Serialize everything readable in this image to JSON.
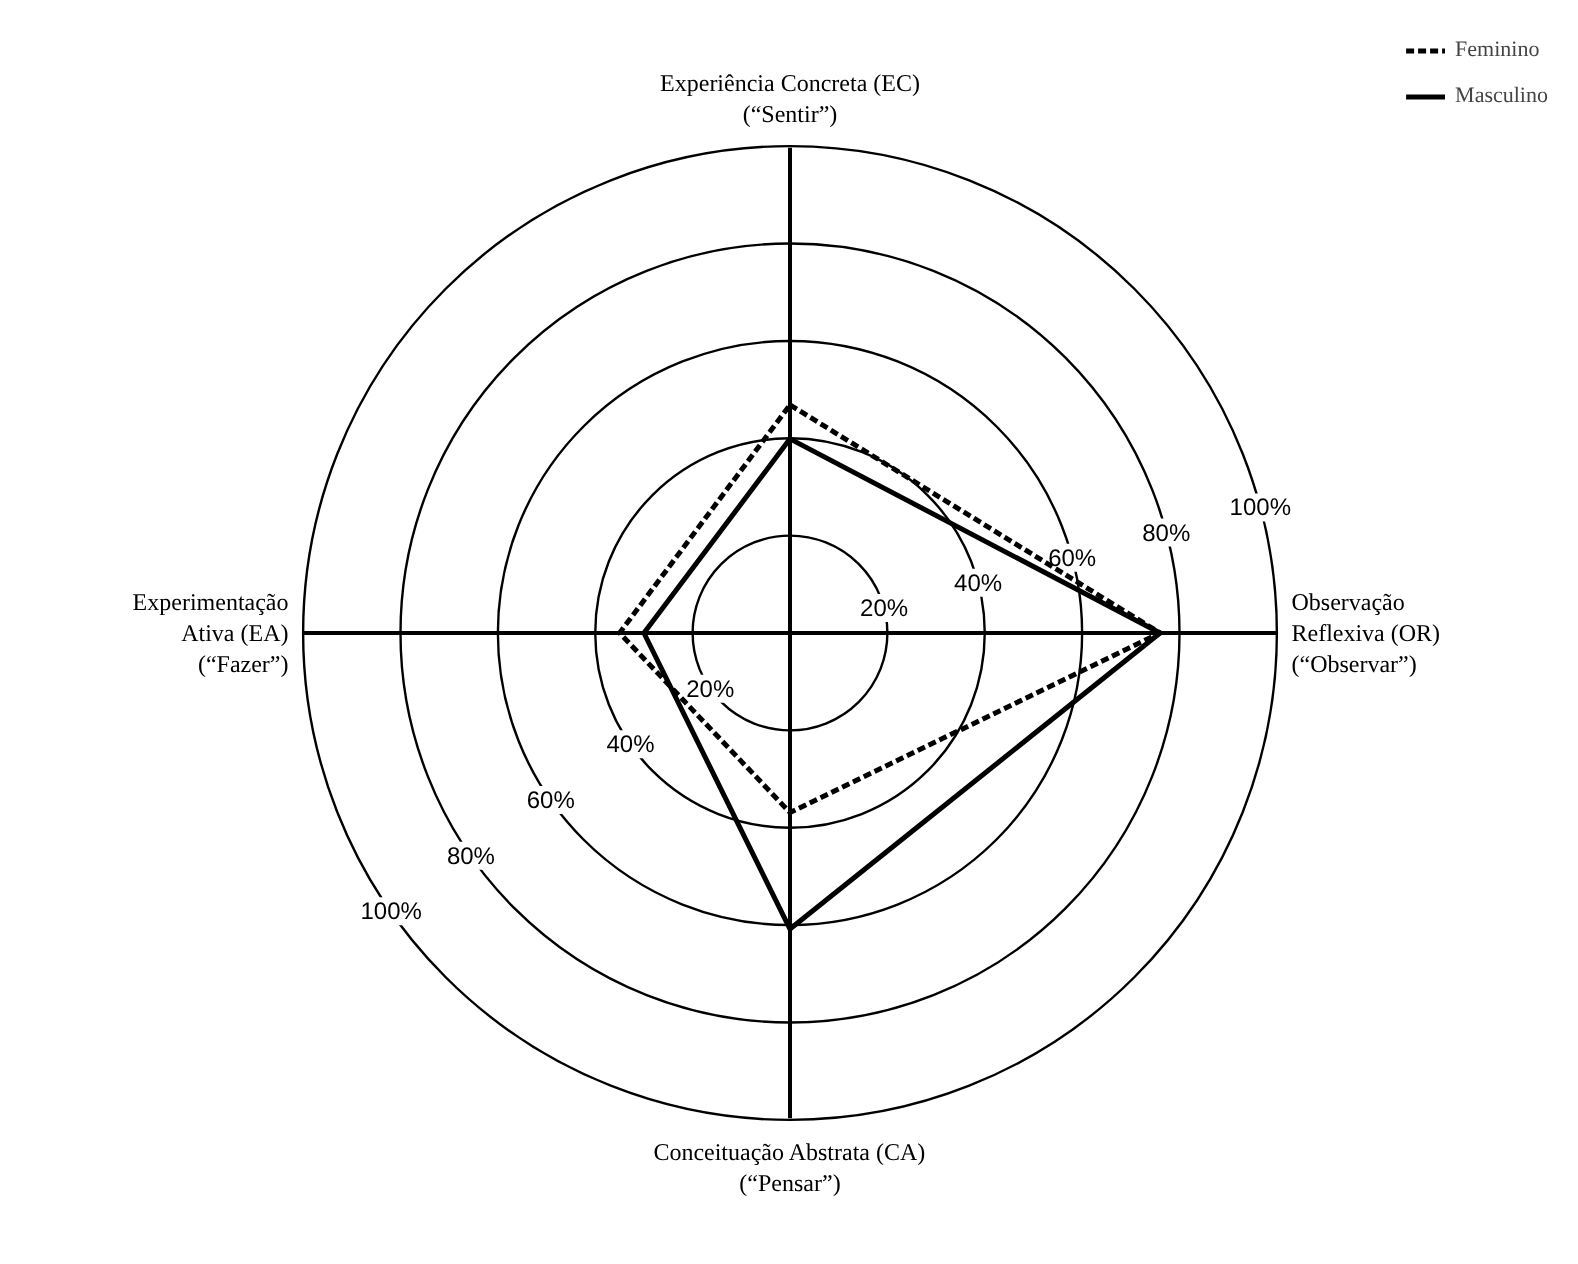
{
  "chart_data": {
    "type": "radar",
    "categories": [
      "Experiência Concreta (EC)\n(“Sentir”)",
      "Observação\nReflexiva (OR)\n(“Observar”)",
      "Conceituação Abstrata (CA)\n(“Pensar”)",
      "Experimentação\nAtiva (EA)\n(“Fazer”)"
    ],
    "ylim": [
      0,
      100
    ],
    "yticks": [
      {
        "value": 20,
        "label": "20%"
      },
      {
        "value": 40,
        "label": "40%"
      },
      {
        "value": 60,
        "label": "60%"
      },
      {
        "value": 80,
        "label": "80%"
      },
      {
        "value": 100,
        "label": "100%"
      }
    ],
    "series": [
      {
        "name": "Feminino",
        "color": "#000000",
        "line_style": "dashed",
        "values": [
          47,
          76,
          37,
          35
        ]
      },
      {
        "name": "Masculino",
        "color": "#000000",
        "line_style": "solid",
        "values": [
          40,
          76,
          61,
          30
        ]
      }
    ],
    "legend": "top right",
    "marker": "none"
  }
}
